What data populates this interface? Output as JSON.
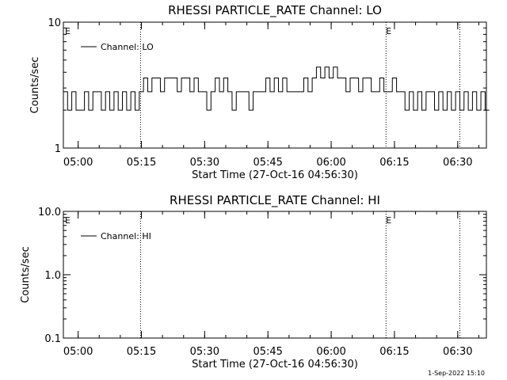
{
  "chart_data": [
    {
      "type": "line",
      "title": "RHESSI PARTICLE_RATE Channel: LO",
      "xlabel": "Start Time (27-Oct-16 04:56:30)",
      "ylabel": "Counts/sec",
      "y_scale": "log",
      "ylim": [
        1,
        10
      ],
      "y_ticks": [
        "1",
        "10"
      ],
      "x_ticks": [
        "05:00",
        "05:15",
        "05:30",
        "05:45",
        "06:00",
        "06:15",
        "06:30"
      ],
      "x_tick_minutes": [
        3.5,
        18.5,
        33.5,
        48.5,
        63.5,
        78.5,
        93.5
      ],
      "xlim_minutes": [
        0,
        100.3
      ],
      "grid": false,
      "legend_position": "top-left",
      "series": [
        {
          "name": "Channel: LO",
          "x_minutes": [
            0,
            1,
            2,
            3,
            4,
            5,
            6,
            7,
            8,
            9,
            10,
            11,
            12,
            13,
            14,
            15,
            16,
            17,
            18,
            19,
            20,
            21,
            22,
            23,
            24,
            25,
            26,
            27,
            28,
            29,
            30,
            31,
            32,
            33,
            34,
            35,
            36,
            37,
            38,
            39,
            40,
            41,
            42,
            43,
            44,
            45,
            46,
            47,
            48,
            49,
            50,
            51,
            52,
            53,
            54,
            55,
            56,
            57,
            58,
            59,
            60,
            61,
            62,
            63,
            64,
            65,
            66,
            67,
            68,
            69,
            70,
            71,
            72,
            73,
            74,
            75,
            76,
            77,
            78,
            79,
            80,
            81,
            82,
            83,
            84,
            85,
            86,
            87,
            88,
            89,
            90,
            91,
            92,
            93,
            94,
            95,
            96,
            97,
            98,
            99,
            100
          ],
          "values": [
            2.8,
            2,
            2.8,
            2,
            2,
            2.8,
            2,
            2.8,
            2.8,
            2,
            2.8,
            2,
            2.8,
            2,
            2.8,
            2,
            2.8,
            2,
            2.8,
            3.6,
            2.8,
            3.6,
            3.6,
            2.8,
            3.6,
            3.6,
            3.6,
            2.8,
            3.6,
            3.6,
            2.8,
            3.6,
            2.8,
            2.8,
            2,
            2.8,
            3.6,
            2.8,
            3.6,
            2.8,
            2,
            2.8,
            2.8,
            2.8,
            2,
            2.8,
            2.8,
            2.8,
            3.6,
            2.8,
            3.6,
            2.8,
            3.6,
            2.8,
            2.8,
            2.8,
            2.8,
            3.6,
            2.8,
            3.6,
            4.4,
            3.6,
            4.4,
            3.6,
            4.4,
            3.6,
            3.6,
            2.8,
            3.6,
            3.6,
            2.8,
            3.6,
            3.6,
            2.8,
            2.8,
            3.6,
            2.8,
            2.8,
            3.6,
            2.8,
            2.8,
            2,
            2.8,
            2,
            2.8,
            2,
            2.8,
            2.8,
            2,
            2.8,
            2,
            2.8,
            2,
            2.8,
            2,
            2.8,
            2,
            2.8,
            2,
            2.8,
            2
          ]
        }
      ],
      "annotations": [
        {
          "label": "E",
          "x_minutes": 0
        },
        {
          "label": "E",
          "x_minutes": 76.5
        }
      ],
      "vertical_dotted_lines_minutes": [
        18.3,
        76.5,
        94.0
      ]
    },
    {
      "type": "line",
      "title": "RHESSI PARTICLE_RATE Channel: HI",
      "xlabel": "Start Time (27-Oct-16 04:56:30)",
      "ylabel": "Counts/sec",
      "y_scale": "log",
      "ylim": [
        0.1,
        10
      ],
      "y_ticks": [
        "0.1",
        "1.0",
        "10.0"
      ],
      "x_ticks": [
        "05:00",
        "05:15",
        "05:30",
        "05:45",
        "06:00",
        "06:15",
        "06:30"
      ],
      "x_tick_minutes": [
        3.5,
        18.5,
        33.5,
        48.5,
        63.5,
        78.5,
        93.5
      ],
      "xlim_minutes": [
        0,
        100.3
      ],
      "grid": false,
      "legend_position": "top-left",
      "series": [
        {
          "name": "Channel: HI",
          "x_minutes": [],
          "values": []
        }
      ],
      "annotations": [
        {
          "label": "E",
          "x_minutes": 0
        },
        {
          "label": "E",
          "x_minutes": 76.5
        }
      ],
      "vertical_dotted_lines_minutes": [
        18.3,
        76.5,
        94.0
      ]
    }
  ],
  "footer": {
    "timestamp": "1-Sep-2022 15:10"
  }
}
